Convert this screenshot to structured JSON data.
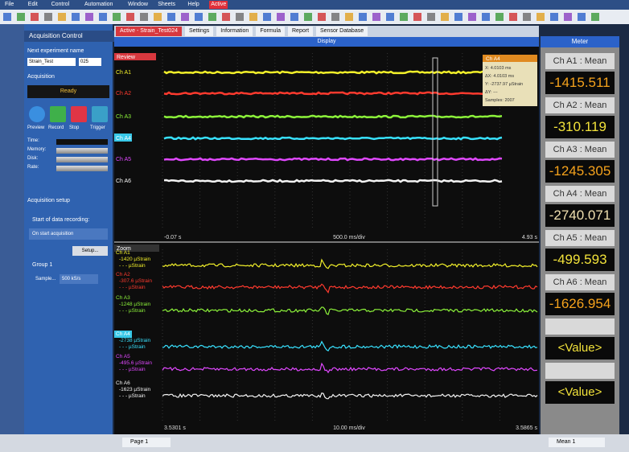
{
  "menu": [
    "File",
    "Edit",
    "Control",
    "Automation",
    "Window",
    "Sheets",
    "Help",
    "Active"
  ],
  "acquisition_control": {
    "title": "Acquisition Control",
    "experiment_label": "Next experiment name",
    "experiment_name": "Strain_Test",
    "experiment_number": "025",
    "acquisition_label": "Acquisition",
    "status": "Ready",
    "buttons": [
      "Preview",
      "Record",
      "Stop",
      "Trigger"
    ],
    "stats": [
      "Time:",
      "Memory:",
      "Disk:",
      "Rate:"
    ],
    "setup_label": "Acquisition setup",
    "start_label": "Start of data recording:",
    "start_option": "On start acquisition",
    "setup_button": "Setup...",
    "group": "Group 1",
    "sample_label": "Sample...",
    "sample_rate": "500 kS/s"
  },
  "tabs": [
    "Active - Strain_Test024",
    "Settings",
    "Information",
    "Formula",
    "Report",
    "Sensor Database"
  ],
  "display": {
    "title": "Display",
    "review": {
      "label": "Review",
      "channels": [
        "Ch A1",
        "Ch A2",
        "Ch A3",
        "Ch A4",
        "Ch A5",
        "Ch A6"
      ],
      "cursor": {
        "title": "Ch A4",
        "lines": [
          "X: 4.0103 ms",
          "ΔX: 4.0103 ms",
          "Y: -2737.97 µStrain",
          "ΔY: ---",
          "Samples: 2007"
        ]
      },
      "axis": {
        "start": "-0.07 s",
        "scale": "500.0 ms/div",
        "end": "4.93 s"
      }
    },
    "zoom": {
      "label": "Zoom",
      "channels": [
        {
          "name": "Ch A1",
          "value": "-1420 µStrain",
          "delta": "- - - µStrain"
        },
        {
          "name": "Ch A2",
          "value": "-307.6 µStrain",
          "delta": "- - - µStrain"
        },
        {
          "name": "Ch A3",
          "value": "-1248 µStrain",
          "delta": "- - - µStrain"
        },
        {
          "name": "Ch A4",
          "value": "-2738 µStrain",
          "delta": "- - - µStrain"
        },
        {
          "name": "Ch A5",
          "value": "-495.6 µStrain",
          "delta": "- - - µStrain"
        },
        {
          "name": "Ch A6",
          "value": "-1623 µStrain",
          "delta": "- - - µStrain"
        }
      ],
      "axis": {
        "start": "3.5301 s",
        "scale": "10.00 ms/div",
        "end": "3.5865 s"
      }
    }
  },
  "meter": {
    "title": "Meter",
    "items": [
      {
        "label": "Ch A1 : Mean",
        "value": "-1415.511"
      },
      {
        "label": "Ch A2 : Mean",
        "value": "-310.119"
      },
      {
        "label": "Ch A3 : Mean",
        "value": "-1245.305"
      },
      {
        "label": "Ch A4 : Mean",
        "value": "-2740.071"
      },
      {
        "label": "Ch A5 : Mean",
        "value": "-499.593"
      },
      {
        "label": "Ch A6 : Mean",
        "value": "-1626.954"
      }
    ],
    "placeholders": [
      "<Value>",
      "<Value>"
    ]
  },
  "footer": {
    "page": "Page 1",
    "meter_page": "Mean 1"
  }
}
